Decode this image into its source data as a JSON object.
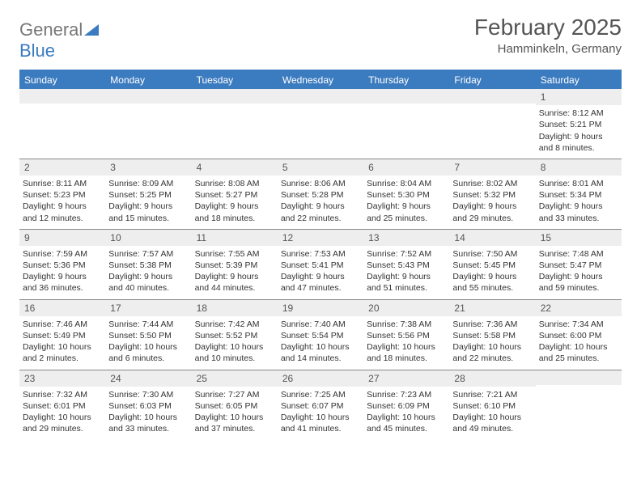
{
  "brand": {
    "part1": "General",
    "part2": "Blue"
  },
  "title": {
    "month": "February 2025",
    "location": "Hamminkeln, Germany"
  },
  "colors": {
    "header_bg": "#3b7bbf",
    "header_text": "#ffffff",
    "daynum_bg": "#eeeeee",
    "row_border": "#888888",
    "body_text": "#333333",
    "title_text": "#555555"
  },
  "weekdays": [
    "Sunday",
    "Monday",
    "Tuesday",
    "Wednesday",
    "Thursday",
    "Friday",
    "Saturday"
  ],
  "layout": {
    "columns": 7,
    "rows": 5,
    "first_weekday_index": 6,
    "days_in_month": 28
  },
  "days": {
    "1": {
      "sunrise": "8:12 AM",
      "sunset": "5:21 PM",
      "daylight": "9 hours and 8 minutes."
    },
    "2": {
      "sunrise": "8:11 AM",
      "sunset": "5:23 PM",
      "daylight": "9 hours and 12 minutes."
    },
    "3": {
      "sunrise": "8:09 AM",
      "sunset": "5:25 PM",
      "daylight": "9 hours and 15 minutes."
    },
    "4": {
      "sunrise": "8:08 AM",
      "sunset": "5:27 PM",
      "daylight": "9 hours and 18 minutes."
    },
    "5": {
      "sunrise": "8:06 AM",
      "sunset": "5:28 PM",
      "daylight": "9 hours and 22 minutes."
    },
    "6": {
      "sunrise": "8:04 AM",
      "sunset": "5:30 PM",
      "daylight": "9 hours and 25 minutes."
    },
    "7": {
      "sunrise": "8:02 AM",
      "sunset": "5:32 PM",
      "daylight": "9 hours and 29 minutes."
    },
    "8": {
      "sunrise": "8:01 AM",
      "sunset": "5:34 PM",
      "daylight": "9 hours and 33 minutes."
    },
    "9": {
      "sunrise": "7:59 AM",
      "sunset": "5:36 PM",
      "daylight": "9 hours and 36 minutes."
    },
    "10": {
      "sunrise": "7:57 AM",
      "sunset": "5:38 PM",
      "daylight": "9 hours and 40 minutes."
    },
    "11": {
      "sunrise": "7:55 AM",
      "sunset": "5:39 PM",
      "daylight": "9 hours and 44 minutes."
    },
    "12": {
      "sunrise": "7:53 AM",
      "sunset": "5:41 PM",
      "daylight": "9 hours and 47 minutes."
    },
    "13": {
      "sunrise": "7:52 AM",
      "sunset": "5:43 PM",
      "daylight": "9 hours and 51 minutes."
    },
    "14": {
      "sunrise": "7:50 AM",
      "sunset": "5:45 PM",
      "daylight": "9 hours and 55 minutes."
    },
    "15": {
      "sunrise": "7:48 AM",
      "sunset": "5:47 PM",
      "daylight": "9 hours and 59 minutes."
    },
    "16": {
      "sunrise": "7:46 AM",
      "sunset": "5:49 PM",
      "daylight": "10 hours and 2 minutes."
    },
    "17": {
      "sunrise": "7:44 AM",
      "sunset": "5:50 PM",
      "daylight": "10 hours and 6 minutes."
    },
    "18": {
      "sunrise": "7:42 AM",
      "sunset": "5:52 PM",
      "daylight": "10 hours and 10 minutes."
    },
    "19": {
      "sunrise": "7:40 AM",
      "sunset": "5:54 PM",
      "daylight": "10 hours and 14 minutes."
    },
    "20": {
      "sunrise": "7:38 AM",
      "sunset": "5:56 PM",
      "daylight": "10 hours and 18 minutes."
    },
    "21": {
      "sunrise": "7:36 AM",
      "sunset": "5:58 PM",
      "daylight": "10 hours and 22 minutes."
    },
    "22": {
      "sunrise": "7:34 AM",
      "sunset": "6:00 PM",
      "daylight": "10 hours and 25 minutes."
    },
    "23": {
      "sunrise": "7:32 AM",
      "sunset": "6:01 PM",
      "daylight": "10 hours and 29 minutes."
    },
    "24": {
      "sunrise": "7:30 AM",
      "sunset": "6:03 PM",
      "daylight": "10 hours and 33 minutes."
    },
    "25": {
      "sunrise": "7:27 AM",
      "sunset": "6:05 PM",
      "daylight": "10 hours and 37 minutes."
    },
    "26": {
      "sunrise": "7:25 AM",
      "sunset": "6:07 PM",
      "daylight": "10 hours and 41 minutes."
    },
    "27": {
      "sunrise": "7:23 AM",
      "sunset": "6:09 PM",
      "daylight": "10 hours and 45 minutes."
    },
    "28": {
      "sunrise": "7:21 AM",
      "sunset": "6:10 PM",
      "daylight": "10 hours and 49 minutes."
    }
  },
  "labels": {
    "sunrise": "Sunrise:",
    "sunset": "Sunset:",
    "daylight": "Daylight:"
  }
}
